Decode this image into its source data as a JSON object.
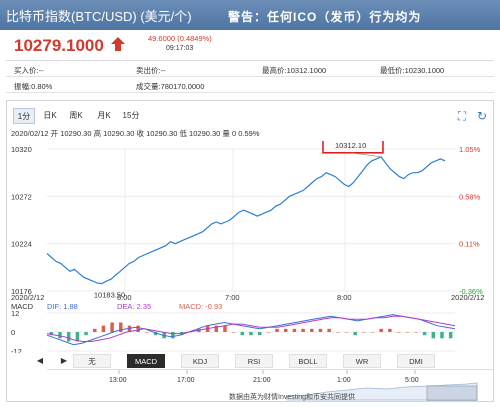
{
  "header": {
    "title": "比特币指数(BTC/USD) (美元/个)",
    "warning": "警告：任何ICO（发币）行为均为"
  },
  "quote": {
    "price": "10279.1000",
    "change": "49.6000 (0.4849%)",
    "time": "09:17:03"
  },
  "stats": {
    "bid_label": "买入价:--",
    "ask_label": "卖出价:--",
    "high_label": "最高价:10312.1000",
    "low_label": "最低价:10230.1000",
    "amplitude_label": "振幅:0.80%",
    "volume_label": "成交量:780170.0000"
  },
  "tabs": [
    "1分",
    "日K",
    "周K",
    "月K",
    "15分"
  ],
  "active_tab": "1分",
  "ohlc_line": "2020/02/12 开 10290.30 高 10290.30 收 10290.30 低 10290.30 量 0 0.59%",
  "chart_data": {
    "type": "line",
    "y_axis_ticks": [
      "10320",
      "10272",
      "10224",
      "10176"
    ],
    "right_axis_ticks": [
      "1.05%",
      "0.58%",
      "0.11%",
      "-0.36%"
    ],
    "x_tick_labels": [
      "2020/2/12",
      "6:00",
      "7:00",
      "8:00",
      "2020/2/12"
    ],
    "ylim": [
      10176,
      10320
    ],
    "annotations": {
      "max_label": "10312.10",
      "min_label": "10183.50"
    },
    "series": [
      {
        "values": [
          10214,
          10210,
          10206,
          10204,
          10200,
          10196,
          10198,
          10194,
          10190,
          10188,
          10186,
          10184,
          10183.5,
          10186,
          10188,
          10192,
          10196,
          10200,
          10204,
          10206,
          10210,
          10212,
          10214,
          10216,
          10218,
          10220,
          10222,
          10226,
          10224,
          10226,
          10228,
          10230,
          10232,
          10234,
          10236,
          10240,
          10244,
          10246,
          10244,
          10246,
          10248,
          10252,
          10256,
          10258,
          10256,
          10254,
          10252,
          10254,
          10256,
          10258,
          10262,
          10264,
          10268,
          10272,
          10274,
          10276,
          10278,
          10282,
          10286,
          10290,
          10292,
          10296,
          10294,
          10292,
          10288,
          10284,
          10282,
          10286,
          10292,
          10298,
          10304,
          10308,
          10310,
          10312.1,
          10306,
          10300,
          10296,
          10292,
          10290,
          10294,
          10296,
          10296,
          10298,
          10302,
          10306,
          10308,
          10310,
          10308
        ]
      }
    ]
  },
  "macd": {
    "label": "MACD",
    "dif": "DIF: 1.88",
    "dea": "DEA: 2.35",
    "macd": "MACD: -0.93",
    "y_ticks": [
      "12",
      "0",
      "-12"
    ],
    "dif_values": [
      -2,
      -4,
      -6,
      -8,
      -7,
      -5,
      -3,
      -1,
      1,
      2,
      3,
      2,
      0,
      -2,
      -3,
      -2,
      0,
      2,
      4,
      5,
      6,
      5,
      4,
      3,
      2,
      3,
      4,
      5,
      6,
      7,
      8,
      9,
      10,
      9,
      8,
      7,
      8,
      9,
      10,
      11,
      10,
      9,
      8,
      6,
      4,
      3,
      2
    ],
    "dea_values": [
      -1,
      -2,
      -3,
      -5,
      -6,
      -6,
      -5,
      -4,
      -2,
      0,
      1,
      2,
      1,
      0,
      -1,
      -1,
      0,
      1,
      2,
      3,
      4,
      5,
      5,
      4,
      3,
      3,
      3,
      4,
      5,
      6,
      7,
      8,
      9,
      9,
      8,
      8,
      8,
      9,
      9,
      10,
      10,
      9,
      8,
      7,
      6,
      5,
      4
    ],
    "hist_values": [
      -2,
      -4,
      -6,
      -6,
      -2,
      2,
      4,
      6,
      6,
      4,
      4,
      0,
      -2,
      -4,
      -4,
      -2,
      0,
      2,
      4,
      4,
      4,
      0,
      -2,
      -2,
      -2,
      0,
      2,
      2,
      2,
      2,
      2,
      2,
      2,
      0,
      0,
      -2,
      0,
      0,
      2,
      2,
      0,
      0,
      0,
      -2,
      -4,
      -4,
      -4
    ]
  },
  "indicator_tabs": [
    "无",
    "MACD",
    "KDJ",
    "RSI",
    "BOLL",
    "WR",
    "DMI"
  ],
  "active_indicator": "MACD",
  "overview": {
    "time_labels": [
      "13:00",
      "17:00",
      "21:00",
      "1:00",
      "5:00"
    ],
    "footer": "数据由英为财情Investing和币安共同提供"
  },
  "colors": {
    "title_bar": "#5a7fad",
    "price_red": "#d23a2e",
    "line_blue": "#2b7fd4",
    "dif_blue": "#3d6fd1",
    "dea_purple": "#b23bd0",
    "hist_red": "#d86050",
    "hist_green": "#3ab38a",
    "highlight_box": "#e02020"
  }
}
